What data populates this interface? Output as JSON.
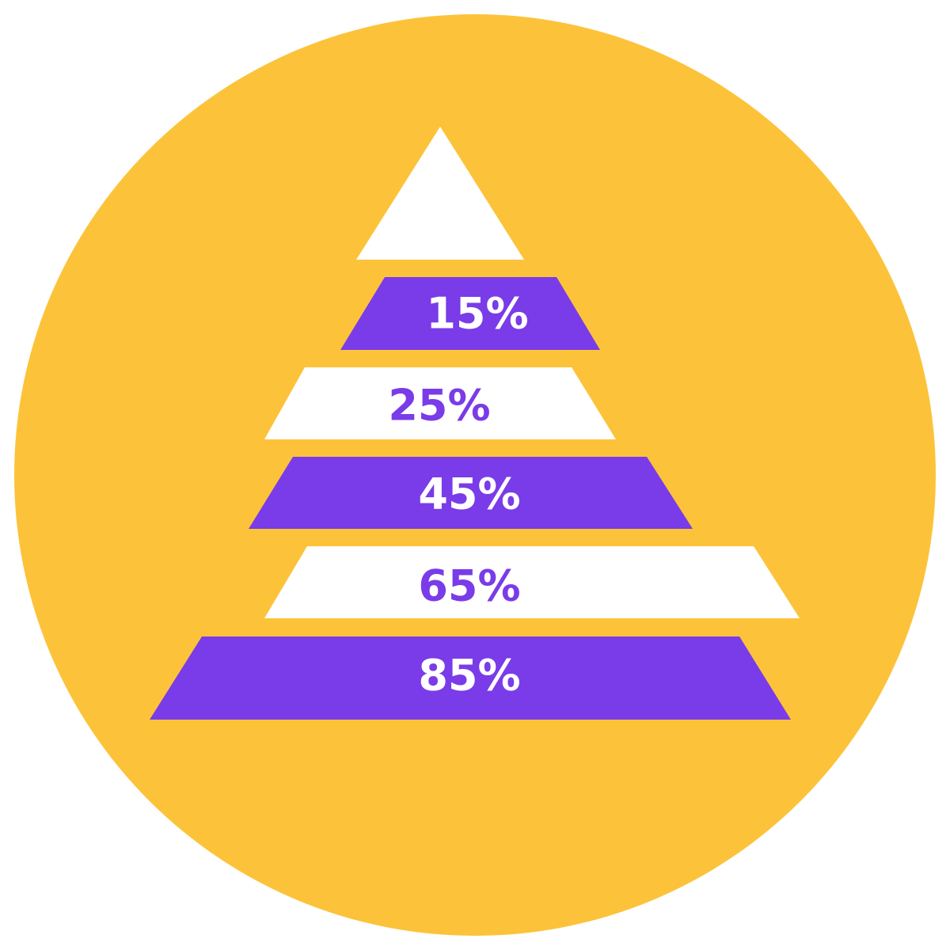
{
  "pyramid": {
    "levels": [
      "15%",
      "25%",
      "45%",
      "65%",
      "85%"
    ]
  }
}
